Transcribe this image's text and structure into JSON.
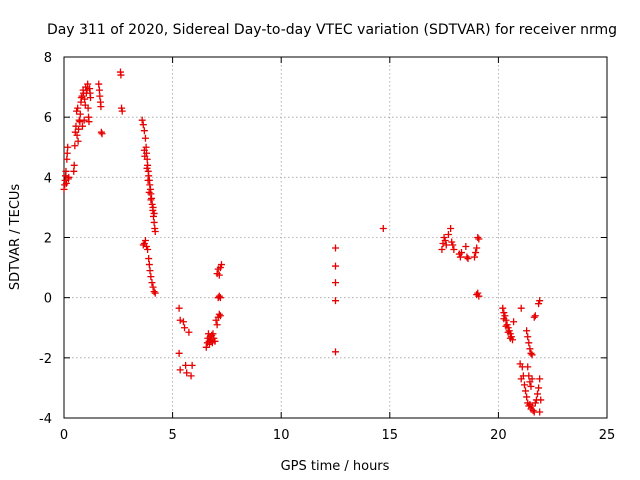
{
  "chart_data": {
    "type": "scatter",
    "title": "Day 311 of 2020, Sidereal Day-to-day VTEC variation (SDTVAR) for receiver nrmg",
    "xlabel": "GPS time / hours",
    "ylabel": "SDTVAR / TECUs",
    "xlim": [
      0,
      25
    ],
    "ylim": [
      -4,
      8
    ],
    "xticks": [
      0,
      5,
      10,
      15,
      20,
      25
    ],
    "yticks": [
      -4,
      -2,
      0,
      2,
      4,
      6,
      8
    ],
    "xtick_labels": [
      "0",
      "5",
      "10",
      "15",
      "20",
      "25"
    ],
    "ytick_labels": [
      "-4",
      "-2",
      "0",
      "2",
      "4",
      "6",
      "8"
    ],
    "grid": true,
    "marker": "+",
    "color": "#e60000",
    "series": [
      {
        "name": "SDTVAR",
        "points": [
          [
            0.0,
            3.6
          ],
          [
            0.03,
            3.75
          ],
          [
            0.05,
            3.9
          ],
          [
            0.07,
            4.05
          ],
          [
            0.09,
            4.2
          ],
          [
            0.11,
            3.8
          ],
          [
            0.13,
            4.6
          ],
          [
            0.15,
            4.8
          ],
          [
            0.17,
            5.0
          ],
          [
            0.2,
            3.95
          ],
          [
            0.22,
            4.0
          ],
          [
            0.45,
            4.2
          ],
          [
            0.47,
            4.4
          ],
          [
            0.5,
            5.05
          ],
          [
            0.52,
            5.5
          ],
          [
            0.55,
            5.7
          ],
          [
            0.58,
            6.2
          ],
          [
            0.6,
            5.4
          ],
          [
            0.63,
            6.3
          ],
          [
            0.65,
            5.2
          ],
          [
            0.67,
            5.6
          ],
          [
            0.7,
            5.9
          ],
          [
            0.73,
            5.85
          ],
          [
            0.75,
            6.1
          ],
          [
            0.78,
            6.5
          ],
          [
            0.8,
            6.65
          ],
          [
            0.83,
            6.7
          ],
          [
            0.85,
            5.7
          ],
          [
            0.88,
            6.9
          ],
          [
            0.9,
            6.8
          ],
          [
            0.93,
            5.9
          ],
          [
            0.95,
            6.6
          ],
          [
            0.98,
            6.4
          ],
          [
            1.0,
            7.0
          ],
          [
            1.03,
            6.8
          ],
          [
            1.06,
            6.9
          ],
          [
            1.09,
            7.1
          ],
          [
            1.11,
            6.3
          ],
          [
            1.13,
            6.0
          ],
          [
            1.15,
            5.85
          ],
          [
            1.18,
            6.95
          ],
          [
            1.2,
            6.8
          ],
          [
            1.22,
            6.65
          ],
          [
            1.6,
            7.1
          ],
          [
            1.63,
            6.9
          ],
          [
            1.65,
            6.7
          ],
          [
            1.68,
            6.5
          ],
          [
            1.7,
            6.35
          ],
          [
            1.72,
            5.5
          ],
          [
            1.75,
            5.45
          ],
          [
            2.6,
            7.5
          ],
          [
            2.62,
            7.4
          ],
          [
            2.65,
            6.3
          ],
          [
            2.68,
            6.2
          ],
          [
            3.6,
            5.9
          ],
          [
            3.65,
            5.75
          ],
          [
            3.7,
            5.55
          ],
          [
            3.75,
            5.3
          ],
          [
            3.78,
            5.0
          ],
          [
            3.8,
            4.8
          ],
          [
            3.83,
            4.6
          ],
          [
            3.85,
            4.4
          ],
          [
            3.88,
            4.2
          ],
          [
            3.9,
            4.05
          ],
          [
            3.93,
            3.9
          ],
          [
            3.95,
            3.75
          ],
          [
            3.98,
            3.6
          ],
          [
            4.0,
            3.45
          ],
          [
            4.03,
            3.3
          ],
          [
            4.06,
            3.1
          ],
          [
            4.09,
            2.9
          ],
          [
            4.12,
            2.7
          ],
          [
            4.15,
            2.5
          ],
          [
            4.18,
            2.3
          ],
          [
            4.2,
            2.2
          ],
          [
            3.7,
            4.9
          ],
          [
            3.72,
            4.7
          ],
          [
            3.82,
            4.3
          ],
          [
            3.87,
            3.9
          ],
          [
            3.92,
            3.5
          ],
          [
            4.0,
            3.25
          ],
          [
            4.1,
            3.0
          ],
          [
            4.15,
            2.8
          ],
          [
            3.65,
            1.75
          ],
          [
            3.7,
            1.8
          ],
          [
            3.75,
            1.9
          ],
          [
            3.8,
            1.7
          ],
          [
            3.85,
            1.6
          ],
          [
            3.9,
            1.3
          ],
          [
            3.93,
            1.1
          ],
          [
            3.96,
            0.9
          ],
          [
            4.0,
            0.7
          ],
          [
            4.05,
            0.5
          ],
          [
            4.1,
            0.35
          ],
          [
            4.15,
            0.2
          ],
          [
            4.2,
            0.15
          ],
          [
            5.3,
            -0.35
          ],
          [
            5.35,
            -0.75
          ],
          [
            5.3,
            -1.85
          ],
          [
            5.35,
            -2.4
          ],
          [
            5.5,
            -0.8
          ],
          [
            5.55,
            -1.0
          ],
          [
            5.6,
            -2.25
          ],
          [
            5.65,
            -2.5
          ],
          [
            5.75,
            -1.15
          ],
          [
            5.85,
            -2.6
          ],
          [
            5.9,
            -2.25
          ],
          [
            6.55,
            -1.65
          ],
          [
            6.6,
            -1.5
          ],
          [
            6.62,
            -1.35
          ],
          [
            6.65,
            -1.2
          ],
          [
            6.68,
            -1.45
          ],
          [
            6.7,
            -1.55
          ],
          [
            6.73,
            -1.3
          ],
          [
            6.76,
            -1.4
          ],
          [
            6.8,
            -1.25
          ],
          [
            6.83,
            -1.5
          ],
          [
            6.86,
            -1.2
          ],
          [
            6.9,
            -1.35
          ],
          [
            6.95,
            -1.45
          ],
          [
            7.0,
            -0.75
          ],
          [
            7.05,
            -0.9
          ],
          [
            7.1,
            -0.65
          ],
          [
            7.15,
            -0.55
          ],
          [
            7.2,
            -0.6
          ],
          [
            7.05,
            0.8
          ],
          [
            7.1,
            0.95
          ],
          [
            7.15,
            0.75
          ],
          [
            7.2,
            1.0
          ],
          [
            7.25,
            1.1
          ],
          [
            7.1,
            0.0
          ],
          [
            7.15,
            0.05
          ],
          [
            7.2,
            0.0
          ],
          [
            12.5,
            1.65
          ],
          [
            12.5,
            1.05
          ],
          [
            12.5,
            0.5
          ],
          [
            12.5,
            -0.1
          ],
          [
            12.5,
            -1.8
          ],
          [
            14.7,
            2.3
          ],
          [
            17.4,
            1.6
          ],
          [
            17.45,
            1.8
          ],
          [
            17.5,
            2.0
          ],
          [
            17.55,
            1.9
          ],
          [
            17.6,
            1.75
          ],
          [
            17.7,
            2.1
          ],
          [
            17.8,
            2.3
          ],
          [
            17.85,
            1.85
          ],
          [
            17.9,
            1.75
          ],
          [
            17.95,
            1.6
          ],
          [
            18.2,
            1.45
          ],
          [
            18.25,
            1.35
          ],
          [
            18.3,
            1.5
          ],
          [
            18.5,
            1.7
          ],
          [
            18.55,
            1.35
          ],
          [
            18.6,
            1.3
          ],
          [
            18.9,
            1.35
          ],
          [
            18.95,
            1.5
          ],
          [
            19.0,
            1.65
          ],
          [
            19.05,
            2.0
          ],
          [
            19.1,
            1.95
          ],
          [
            19.0,
            0.1
          ],
          [
            19.05,
            0.15
          ],
          [
            19.1,
            0.05
          ],
          [
            20.2,
            -0.35
          ],
          [
            20.25,
            -0.5
          ],
          [
            20.3,
            -0.6
          ],
          [
            20.35,
            -0.75
          ],
          [
            20.4,
            -0.9
          ],
          [
            20.45,
            -1.0
          ],
          [
            20.5,
            -1.1
          ],
          [
            20.55,
            -1.2
          ],
          [
            20.6,
            -1.3
          ],
          [
            20.65,
            -1.4
          ],
          [
            20.7,
            -0.8
          ],
          [
            20.25,
            -0.7
          ],
          [
            20.35,
            -0.95
          ],
          [
            20.45,
            -1.15
          ],
          [
            20.55,
            -1.35
          ],
          [
            21.05,
            -0.35
          ],
          [
            21.0,
            -2.2
          ],
          [
            21.05,
            -2.7
          ],
          [
            21.1,
            -2.3
          ],
          [
            21.15,
            -2.6
          ],
          [
            21.2,
            -2.9
          ],
          [
            21.25,
            -3.1
          ],
          [
            21.3,
            -3.3
          ],
          [
            21.35,
            -3.5
          ],
          [
            21.4,
            -3.6
          ],
          [
            21.45,
            -3.55
          ],
          [
            21.5,
            -3.7
          ],
          [
            21.55,
            -3.6
          ],
          [
            21.6,
            -3.75
          ],
          [
            21.65,
            -3.8
          ],
          [
            21.7,
            -3.5
          ],
          [
            21.75,
            -3.4
          ],
          [
            21.8,
            -3.2
          ],
          [
            21.85,
            -3.0
          ],
          [
            21.3,
            -1.1
          ],
          [
            21.35,
            -1.3
          ],
          [
            21.4,
            -1.5
          ],
          [
            21.45,
            -1.7
          ],
          [
            21.5,
            -1.85
          ],
          [
            21.55,
            -1.9
          ],
          [
            21.35,
            -2.3
          ],
          [
            21.4,
            -2.6
          ],
          [
            21.45,
            -2.8
          ],
          [
            21.5,
            -2.95
          ],
          [
            21.55,
            -2.7
          ],
          [
            21.65,
            -0.65
          ],
          [
            21.7,
            -0.6
          ],
          [
            21.85,
            -0.2
          ],
          [
            21.9,
            -0.1
          ],
          [
            21.9,
            -2.7
          ],
          [
            21.95,
            -3.4
          ],
          [
            21.9,
            -3.8
          ]
        ]
      }
    ]
  }
}
